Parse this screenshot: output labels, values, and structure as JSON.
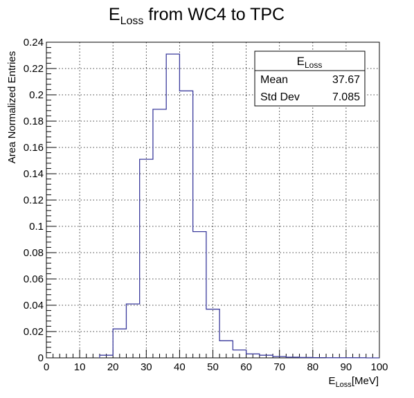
{
  "chart_data": {
    "type": "bar",
    "title": {
      "main": "E",
      "sub": "Loss",
      "rest": " from WC4 to TPC"
    },
    "xlabel": {
      "main": "E",
      "sub": "Loss",
      "rest": "[MeV]"
    },
    "ylabel": "Area Normalized Entries",
    "xlim": [
      0,
      100
    ],
    "ylim": [
      0,
      0.24
    ],
    "x_ticks": [
      0,
      10,
      20,
      30,
      40,
      50,
      60,
      70,
      80,
      90,
      100
    ],
    "y_ticks": [
      0,
      0.02,
      0.04,
      0.06,
      0.08,
      0.1,
      0.12,
      0.14,
      0.16,
      0.18,
      0.2,
      0.22,
      0.24
    ],
    "y_tick_labels": [
      "0",
      "0.02",
      "0.04",
      "0.06",
      "0.08",
      "0.1",
      "0.12",
      "0.14",
      "0.16",
      "0.18",
      "0.2",
      "0.22",
      "0.24"
    ],
    "grid": true,
    "bin_edges": [
      16,
      20,
      24,
      28,
      32,
      36,
      40,
      44,
      48,
      52,
      56,
      60,
      64,
      68,
      72,
      76,
      80,
      84,
      88,
      92,
      96,
      100
    ],
    "values": [
      0.002,
      0.022,
      0.041,
      0.151,
      0.189,
      0.231,
      0.203,
      0.096,
      0.037,
      0.013,
      0.006,
      0.003,
      0.002,
      0.001,
      0.0005,
      0.0003,
      0.0002,
      0.0001,
      0.0001,
      0.0001,
      0
    ],
    "line_color": "#3a3a9c",
    "stats_box": {
      "title": {
        "main": "E",
        "sub": "Loss"
      },
      "placement": "top-right",
      "rows": [
        {
          "label": "Mean",
          "value": "37.67"
        },
        {
          "label": "Std Dev",
          "value": "7.085"
        }
      ]
    }
  }
}
